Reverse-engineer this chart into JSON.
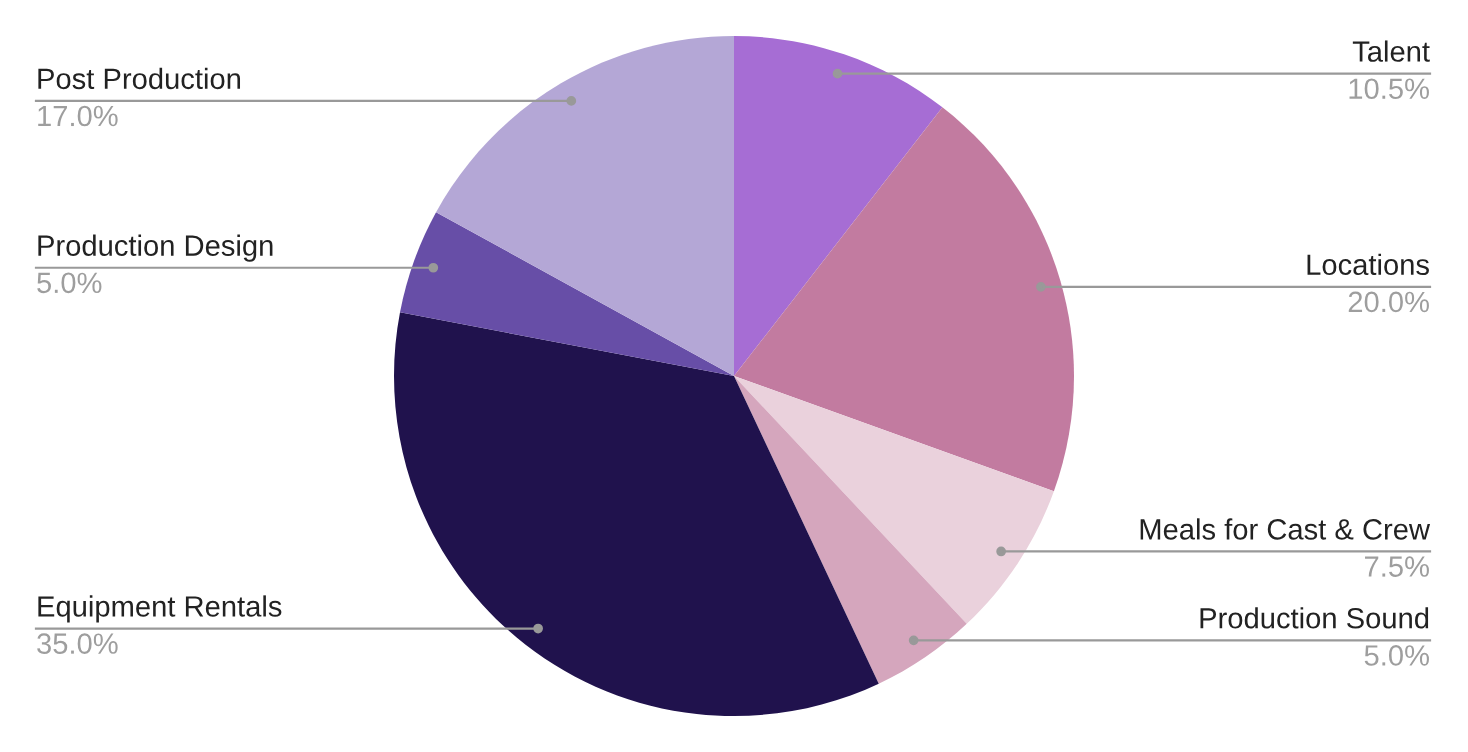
{
  "chart_data": {
    "type": "pie",
    "categories": [
      "Talent",
      "Locations",
      "Meals for Cast & Crew",
      "Production Sound",
      "Equipment Rentals",
      "Production Design",
      "Post Production"
    ],
    "values": [
      10.5,
      20.0,
      7.5,
      5.0,
      35.0,
      5.0,
      17.0
    ],
    "value_labels": [
      "10.5%",
      "20.0%",
      "7.5%",
      "5.0%",
      "35.0%",
      "5.0%",
      "17.0%"
    ],
    "colors": [
      "#a66dd4",
      "#c27ba0",
      "#ead1dc",
      "#d5a6bd",
      "#20124d",
      "#674ea7",
      "#b4a7d6"
    ],
    "legend": false
  }
}
